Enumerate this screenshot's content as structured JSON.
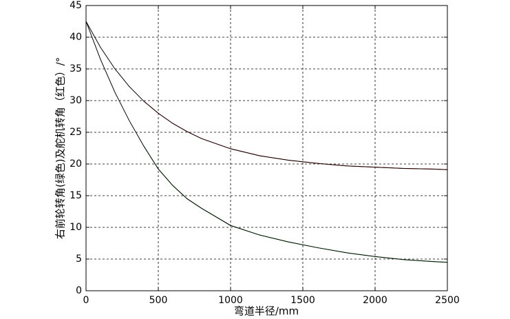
{
  "chart_data": {
    "type": "line",
    "x_label": "弯道半径/mm",
    "y_label": "右前轮转角(绿色)及舵机转角（红色）/°",
    "x": [
      0,
      100,
      200,
      300,
      400,
      500,
      600,
      700,
      800,
      1000,
      1200,
      1400,
      1600,
      1800,
      2000,
      2200,
      2400,
      2500
    ],
    "series": [
      {
        "color": "#ff0000",
        "values": [
          null,
          null,
          null,
          null,
          29.9,
          28.0,
          26.4,
          25.1,
          24.0,
          22.4,
          21.3,
          20.6,
          20.1,
          19.7,
          19.5,
          19.3,
          19.2,
          19.1
        ]
      },
      {
        "color": "#000000",
        "values": [
          42.5,
          38.4,
          35.0,
          32.2,
          29.9,
          28.0,
          26.4,
          25.1,
          24.0,
          22.4,
          21.3,
          20.6,
          20.1,
          19.7,
          19.5,
          19.3,
          19.2,
          19.1
        ]
      },
      {
        "color": "#00cc00",
        "values": [
          null,
          null,
          null,
          null,
          22.8,
          19.2,
          16.6,
          14.5,
          13.0,
          10.3,
          8.8,
          7.7,
          6.8,
          6.0,
          5.4,
          4.9,
          4.6,
          4.5
        ]
      },
      {
        "color": "#000000",
        "values": [
          42.5,
          36.5,
          31.3,
          26.8,
          22.8,
          19.2,
          16.6,
          14.5,
          13.0,
          10.3,
          8.8,
          7.7,
          6.8,
          6.0,
          5.4,
          4.9,
          4.6,
          4.5
        ]
      }
    ],
    "xlim": [
      0,
      2500
    ],
    "xticks": [
      0,
      500,
      1000,
      1500,
      2000,
      2500
    ],
    "ylim": [
      0,
      45
    ],
    "yticks": [
      0,
      5,
      10,
      15,
      20,
      25,
      30,
      35,
      40,
      45
    ],
    "grid": true
  }
}
